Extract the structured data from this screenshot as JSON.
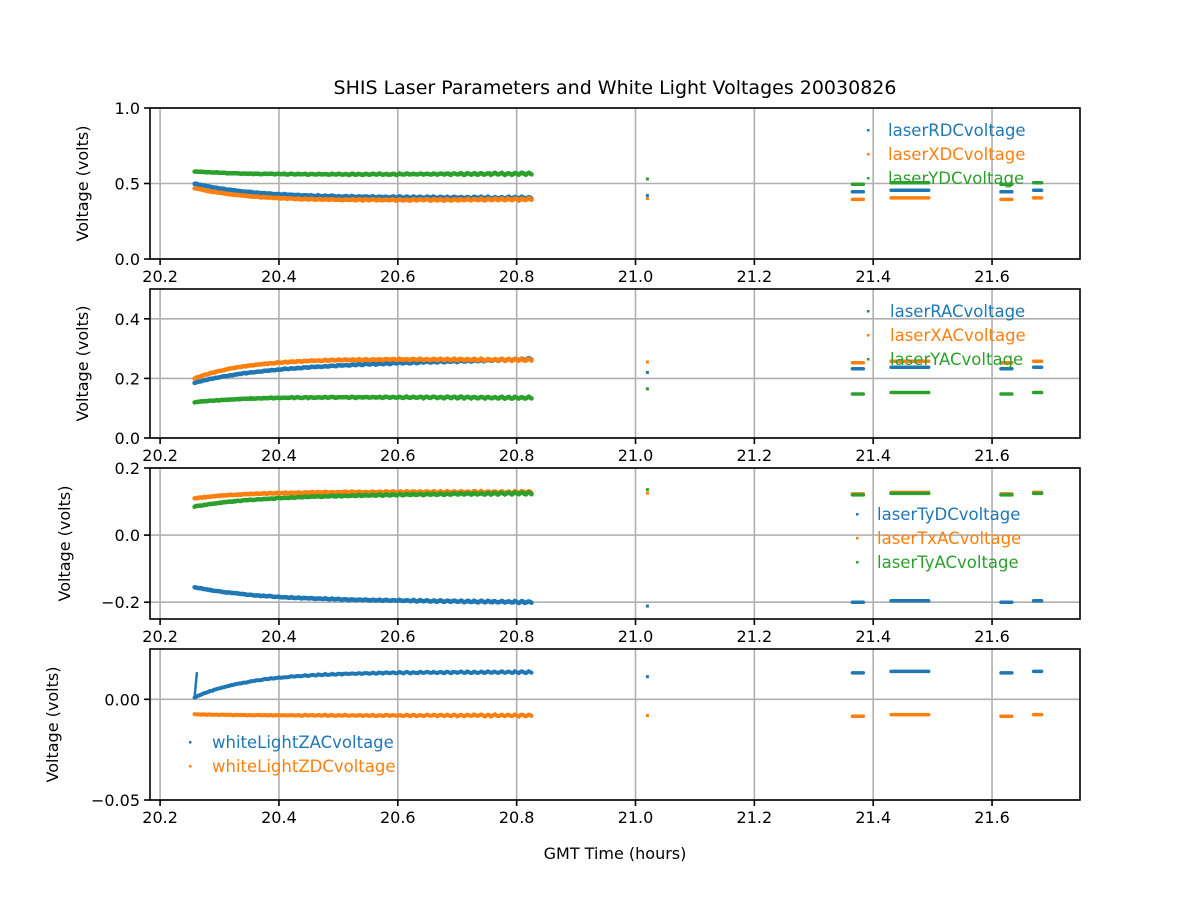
{
  "title": "SHIS Laser Parameters and White Light Voltages 20030826",
  "colors": {
    "blue": "#1f77b4",
    "orange": "#ff7f0e",
    "green": "#2ca02c",
    "grid": "#b0b0b0",
    "axis": "#000000"
  },
  "chart_data": [
    {
      "type": "scatter",
      "xlabel": "",
      "ylabel": "Voltage (volts)",
      "xlim": [
        20.183,
        21.748
      ],
      "ylim": [
        0.0,
        1.0
      ],
      "xticks": [
        "20.2",
        "20.4",
        "20.6",
        "20.8",
        "21.0",
        "21.2",
        "21.4",
        "21.6"
      ],
      "yticks": [
        "0.0",
        "0.5",
        "1.0"
      ],
      "ytick_values": [
        0.0,
        0.5,
        1.0
      ],
      "grid": true,
      "legend_position": "upper-right",
      "series": [
        {
          "name": "laserRDCvoltage",
          "color": "#1f77b4",
          "start": 0.5,
          "settle": 0.41,
          "end": 0.405,
          "segments_level": 0.45
        },
        {
          "name": "laserXDCvoltage",
          "color": "#ff7f0e",
          "start": 0.47,
          "settle": 0.38,
          "end": 0.395,
          "segments_level": 0.4
        },
        {
          "name": "laserYDCvoltage",
          "color": "#2ca02c",
          "start": 0.58,
          "settle": 0.555,
          "end": 0.565,
          "segments_level": 0.5
        }
      ]
    },
    {
      "type": "scatter",
      "xlabel": "",
      "ylabel": "Voltage (volts)",
      "xlim": [
        20.183,
        21.748
      ],
      "ylim": [
        0.0,
        0.5
      ],
      "xticks": [
        "20.2",
        "20.4",
        "20.6",
        "20.8",
        "21.0",
        "21.2",
        "21.4",
        "21.6"
      ],
      "yticks": [
        "0.0",
        "0.2",
        "0.4"
      ],
      "ytick_values": [
        0.0,
        0.2,
        0.4
      ],
      "grid": true,
      "legend_position": "upper-right",
      "series": [
        {
          "name": "laserRACvoltage",
          "color": "#1f77b4",
          "start": 0.185,
          "settle": 0.235,
          "end": 0.265,
          "segments_level": 0.235
        },
        {
          "name": "laserXACvoltage",
          "color": "#ff7f0e",
          "start": 0.2,
          "settle": 0.27,
          "end": 0.262,
          "segments_level": 0.255
        },
        {
          "name": "laserYACvoltage",
          "color": "#2ca02c",
          "start": 0.12,
          "settle": 0.14,
          "end": 0.135,
          "segments_level": 0.15
        }
      ]
    },
    {
      "type": "scatter",
      "xlabel": "",
      "ylabel": "Voltage (volts)",
      "xlim": [
        20.183,
        21.748
      ],
      "ylim": [
        -0.25,
        0.2
      ],
      "xticks": [
        "20.2",
        "20.4",
        "20.6",
        "20.8",
        "21.0",
        "21.2",
        "21.4",
        "21.6"
      ],
      "yticks": [
        "−0.2",
        "0.0",
        "0.2"
      ],
      "ytick_values": [
        -0.2,
        0.0,
        0.2
      ],
      "grid": true,
      "legend_position": "center-right",
      "series": [
        {
          "name": "laserTyDCvoltage",
          "color": "#1f77b4",
          "start": -0.155,
          "settle": -0.19,
          "end": -0.2,
          "segments_level": -0.198
        },
        {
          "name": "laserTxACvoltage",
          "color": "#ff7f0e",
          "start": 0.11,
          "settle": 0.13,
          "end": 0.128,
          "segments_level": 0.125
        },
        {
          "name": "laserTyACvoltage",
          "color": "#2ca02c",
          "start": 0.085,
          "settle": 0.115,
          "end": 0.125,
          "segments_level": 0.122
        }
      ]
    },
    {
      "type": "scatter",
      "xlabel": "GMT Time (hours)",
      "ylabel": "Voltage (volts)",
      "xlim": [
        20.183,
        21.748
      ],
      "ylim": [
        -0.05,
        0.025
      ],
      "xticks": [
        "20.2",
        "20.4",
        "20.6",
        "20.8",
        "21.0",
        "21.2",
        "21.4",
        "21.6"
      ],
      "yticks": [
        "−0.05",
        "0.00"
      ],
      "ytick_values": [
        -0.05,
        0.0
      ],
      "grid": true,
      "legend_position": "lower-left",
      "series": [
        {
          "name": "whiteLightZACvoltage",
          "color": "#1f77b4",
          "start": 0.001,
          "settle": 0.0135,
          "end": 0.0135,
          "segments_level": 0.0135
        },
        {
          "name": "whiteLightZDCvoltage",
          "color": "#ff7f0e",
          "start": -0.0075,
          "settle": -0.008,
          "end": -0.008,
          "segments_level": -0.008
        }
      ]
    }
  ],
  "time_coverage": {
    "main_run": [
      20.258,
      20.825
    ],
    "isolated_points": [
      21.02
    ],
    "late_segments": [
      [
        21.365,
        21.38
      ],
      [
        21.43,
        21.49
      ],
      [
        21.615,
        21.63
      ],
      [
        21.67,
        21.68
      ]
    ]
  }
}
